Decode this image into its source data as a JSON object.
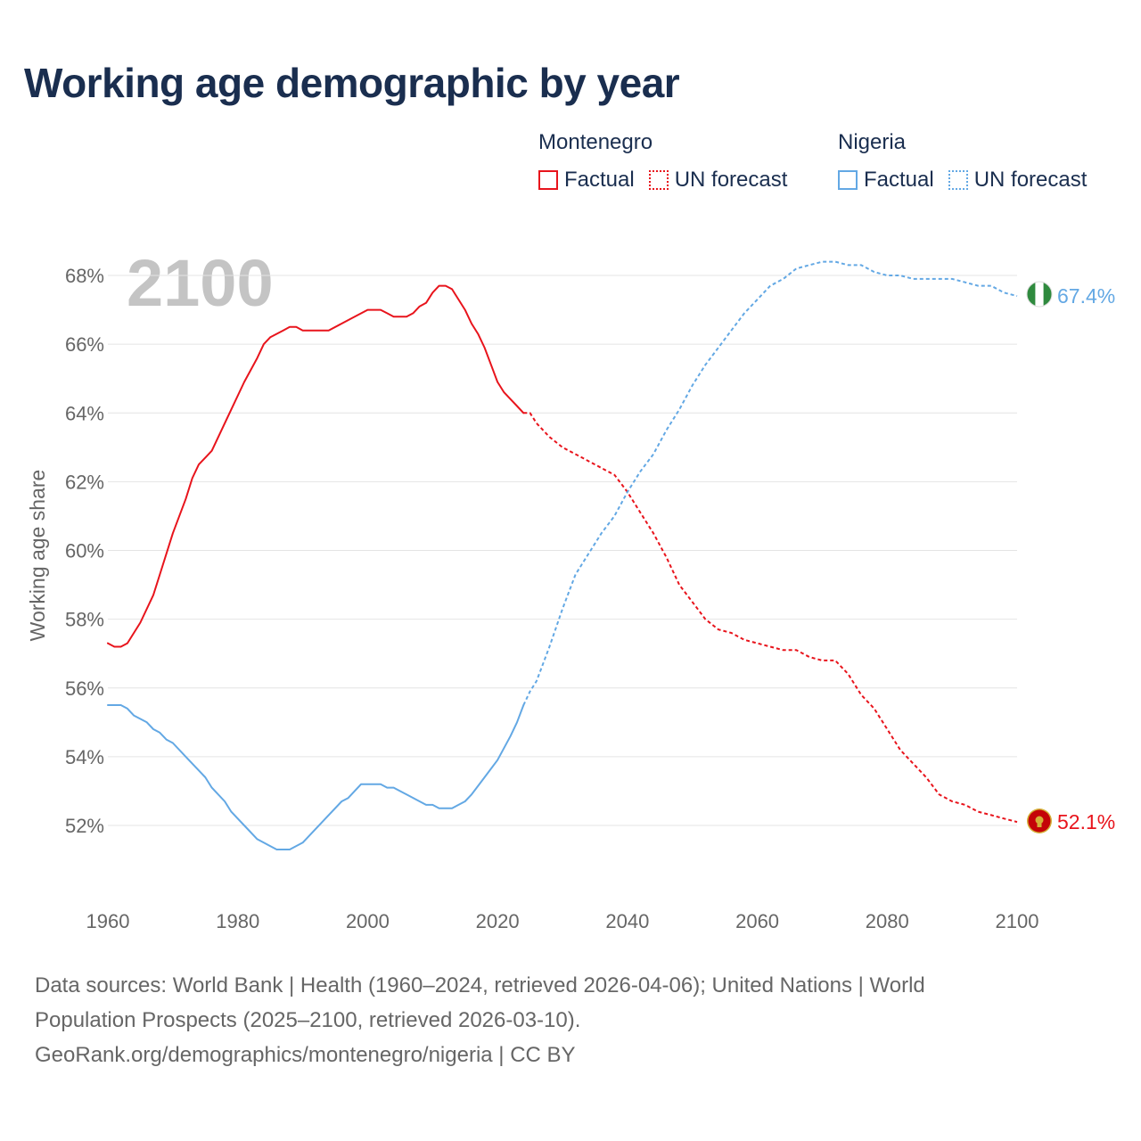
{
  "title": "Working age demographic by year",
  "year_watermark": "2100",
  "colors": {
    "montenegro": "#e8141c",
    "nigeria": "#63a8e4",
    "title": "#1a2e4f",
    "muted": "#666666"
  },
  "legend": {
    "montenegro": {
      "name": "Montenegro",
      "factual": "Factual",
      "forecast": "UN forecast"
    },
    "nigeria": {
      "name": "Nigeria",
      "factual": "Factual",
      "forecast": "UN forecast"
    }
  },
  "footer": {
    "line1": "Data sources: World Bank | Health (1960–2024, retrieved 2026-04-06); United Nations | World",
    "line2": "Population Prospects (2025–2100, retrieved 2026-03-10).",
    "line3": "GeoRank.org/demographics/montenegro/nigeria | CC BY"
  },
  "chart_data": {
    "type": "line",
    "title": "Working age demographic by year",
    "xlabel": "",
    "ylabel": "Working age share",
    "xlim": [
      1960,
      2100
    ],
    "ylim": [
      50,
      69
    ],
    "x_ticks": [
      1960,
      1980,
      2000,
      2020,
      2040,
      2060,
      2080,
      2100
    ],
    "x_tick_labels": [
      "1960",
      "1980",
      "2000",
      "2020",
      "2040",
      "2060",
      "2080",
      "2100"
    ],
    "y_ticks": [
      52,
      54,
      56,
      58,
      60,
      62,
      64,
      66,
      68
    ],
    "y_tick_labels": [
      "52%",
      "54%",
      "56%",
      "58%",
      "60%",
      "62%",
      "64%",
      "66%",
      "68%"
    ],
    "grid": true,
    "series": [
      {
        "name": "Montenegro",
        "segment": "Factual",
        "points": [
          [
            1960,
            57.3
          ],
          [
            1961,
            57.2
          ],
          [
            1962,
            57.2
          ],
          [
            1963,
            57.3
          ],
          [
            1965,
            57.9
          ],
          [
            1967,
            58.7
          ],
          [
            1968,
            59.3
          ],
          [
            1970,
            60.5
          ],
          [
            1972,
            61.5
          ],
          [
            1973,
            62.1
          ],
          [
            1974,
            62.5
          ],
          [
            1975,
            62.7
          ],
          [
            1976,
            62.9
          ],
          [
            1977,
            63.3
          ],
          [
            1979,
            64.1
          ],
          [
            1981,
            64.9
          ],
          [
            1983,
            65.6
          ],
          [
            1984,
            66.0
          ],
          [
            1985,
            66.2
          ],
          [
            1987,
            66.4
          ],
          [
            1988,
            66.5
          ],
          [
            1989,
            66.5
          ],
          [
            1990,
            66.4
          ],
          [
            1994,
            66.4
          ],
          [
            1996,
            66.6
          ],
          [
            1998,
            66.8
          ],
          [
            2000,
            67.0
          ],
          [
            2002,
            67.0
          ],
          [
            2003,
            66.9
          ],
          [
            2004,
            66.8
          ],
          [
            2006,
            66.8
          ],
          [
            2007,
            66.9
          ],
          [
            2008,
            67.1
          ],
          [
            2009,
            67.2
          ],
          [
            2010,
            67.5
          ],
          [
            2011,
            67.7
          ],
          [
            2012,
            67.7
          ],
          [
            2013,
            67.6
          ],
          [
            2014,
            67.3
          ],
          [
            2015,
            67.0
          ],
          [
            2016,
            66.6
          ],
          [
            2017,
            66.3
          ],
          [
            2018,
            65.9
          ],
          [
            2019,
            65.4
          ],
          [
            2020,
            64.9
          ],
          [
            2021,
            64.6
          ],
          [
            2022,
            64.4
          ],
          [
            2023,
            64.2
          ],
          [
            2024,
            64.0
          ]
        ]
      },
      {
        "name": "Montenegro",
        "segment": "UN forecast",
        "points": [
          [
            2024,
            64.0
          ],
          [
            2025,
            64.0
          ],
          [
            2026,
            63.7
          ],
          [
            2028,
            63.3
          ],
          [
            2030,
            63.0
          ],
          [
            2032,
            62.8
          ],
          [
            2034,
            62.6
          ],
          [
            2036,
            62.4
          ],
          [
            2038,
            62.2
          ],
          [
            2040,
            61.7
          ],
          [
            2042,
            61.1
          ],
          [
            2044,
            60.5
          ],
          [
            2046,
            59.8
          ],
          [
            2048,
            59.0
          ],
          [
            2050,
            58.5
          ],
          [
            2052,
            58.0
          ],
          [
            2054,
            57.7
          ],
          [
            2056,
            57.6
          ],
          [
            2058,
            57.4
          ],
          [
            2060,
            57.3
          ],
          [
            2062,
            57.2
          ],
          [
            2064,
            57.1
          ],
          [
            2066,
            57.1
          ],
          [
            2068,
            56.9
          ],
          [
            2070,
            56.8
          ],
          [
            2072,
            56.8
          ],
          [
            2074,
            56.4
          ],
          [
            2076,
            55.8
          ],
          [
            2078,
            55.4
          ],
          [
            2080,
            54.8
          ],
          [
            2082,
            54.2
          ],
          [
            2084,
            53.8
          ],
          [
            2086,
            53.4
          ],
          [
            2088,
            52.9
          ],
          [
            2090,
            52.7
          ],
          [
            2092,
            52.6
          ],
          [
            2094,
            52.4
          ],
          [
            2096,
            52.3
          ],
          [
            2098,
            52.2
          ],
          [
            2100,
            52.1
          ]
        ]
      },
      {
        "name": "Nigeria",
        "segment": "Factual",
        "points": [
          [
            1960,
            55.5
          ],
          [
            1962,
            55.5
          ],
          [
            1963,
            55.4
          ],
          [
            1964,
            55.2
          ],
          [
            1966,
            55.0
          ],
          [
            1967,
            54.8
          ],
          [
            1968,
            54.7
          ],
          [
            1969,
            54.5
          ],
          [
            1970,
            54.4
          ],
          [
            1972,
            54.0
          ],
          [
            1974,
            53.6
          ],
          [
            1975,
            53.4
          ],
          [
            1976,
            53.1
          ],
          [
            1978,
            52.7
          ],
          [
            1979,
            52.4
          ],
          [
            1981,
            52.0
          ],
          [
            1983,
            51.6
          ],
          [
            1985,
            51.4
          ],
          [
            1986,
            51.3
          ],
          [
            1988,
            51.3
          ],
          [
            1990,
            51.5
          ],
          [
            1992,
            51.9
          ],
          [
            1994,
            52.3
          ],
          [
            1996,
            52.7
          ],
          [
            1997,
            52.8
          ],
          [
            1999,
            53.2
          ],
          [
            2002,
            53.2
          ],
          [
            2003,
            53.1
          ],
          [
            2004,
            53.1
          ],
          [
            2006,
            52.9
          ],
          [
            2008,
            52.7
          ],
          [
            2009,
            52.6
          ],
          [
            2010,
            52.6
          ],
          [
            2011,
            52.5
          ],
          [
            2013,
            52.5
          ],
          [
            2015,
            52.7
          ],
          [
            2016,
            52.9
          ],
          [
            2018,
            53.4
          ],
          [
            2020,
            53.9
          ],
          [
            2022,
            54.6
          ],
          [
            2023,
            55.0
          ],
          [
            2024,
            55.5
          ]
        ]
      },
      {
        "name": "Nigeria",
        "segment": "UN forecast",
        "points": [
          [
            2024,
            55.5
          ],
          [
            2025,
            55.9
          ],
          [
            2026,
            56.2
          ],
          [
            2028,
            57.2
          ],
          [
            2030,
            58.3
          ],
          [
            2032,
            59.3
          ],
          [
            2034,
            59.9
          ],
          [
            2036,
            60.5
          ],
          [
            2038,
            61.0
          ],
          [
            2040,
            61.7
          ],
          [
            2042,
            62.3
          ],
          [
            2044,
            62.8
          ],
          [
            2046,
            63.5
          ],
          [
            2048,
            64.1
          ],
          [
            2050,
            64.8
          ],
          [
            2052,
            65.4
          ],
          [
            2054,
            65.9
          ],
          [
            2056,
            66.4
          ],
          [
            2058,
            66.9
          ],
          [
            2060,
            67.3
          ],
          [
            2062,
            67.7
          ],
          [
            2064,
            67.9
          ],
          [
            2066,
            68.2
          ],
          [
            2068,
            68.3
          ],
          [
            2070,
            68.4
          ],
          [
            2072,
            68.4
          ],
          [
            2074,
            68.3
          ],
          [
            2076,
            68.3
          ],
          [
            2078,
            68.1
          ],
          [
            2080,
            68.0
          ],
          [
            2082,
            68.0
          ],
          [
            2084,
            67.9
          ],
          [
            2086,
            67.9
          ],
          [
            2088,
            67.9
          ],
          [
            2090,
            67.9
          ],
          [
            2092,
            67.8
          ],
          [
            2094,
            67.7
          ],
          [
            2096,
            67.7
          ],
          [
            2098,
            67.5
          ],
          [
            2100,
            67.4
          ]
        ]
      }
    ],
    "end_labels": [
      {
        "series": "Nigeria",
        "x": 2100,
        "y": 67.4,
        "text": "67.4%",
        "flag": "nigeria-flag-icon"
      },
      {
        "series": "Montenegro",
        "x": 2100,
        "y": 52.1,
        "text": "52.1%",
        "flag": "montenegro-flag-icon"
      }
    ]
  }
}
